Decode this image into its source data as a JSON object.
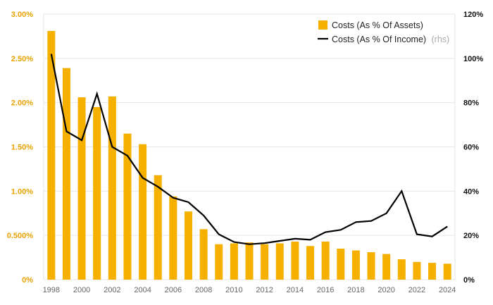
{
  "chart_data": {
    "type": "bar+line",
    "x": [
      1998,
      1999,
      2000,
      2001,
      2002,
      2003,
      2004,
      2005,
      2006,
      2007,
      2008,
      2009,
      2010,
      2011,
      2012,
      2013,
      2014,
      2015,
      2016,
      2017,
      2018,
      2019,
      2020,
      2021,
      2022,
      2023,
      2024
    ],
    "x_tick_labels": [
      "1998",
      "2000",
      "2002",
      "2004",
      "2006",
      "2008",
      "2010",
      "2012",
      "2014",
      "2016",
      "2018",
      "2020",
      "2022",
      "2024"
    ],
    "series": [
      {
        "name": "Costs (As % Of Assets)",
        "axis": "left",
        "kind": "bar",
        "color": "#f5b000",
        "values": [
          2.81,
          2.39,
          2.06,
          1.95,
          2.07,
          1.65,
          1.53,
          1.18,
          0.94,
          0.77,
          0.57,
          0.4,
          0.41,
          0.42,
          0.4,
          0.41,
          0.43,
          0.38,
          0.43,
          0.35,
          0.33,
          0.31,
          0.29,
          0.23,
          0.2,
          0.19,
          0.18
        ]
      },
      {
        "name": "Costs (As % Of Income)",
        "name_suffix": "(rhs)",
        "axis": "right",
        "kind": "line",
        "color": "#000000",
        "values": [
          102,
          67,
          63,
          84,
          60,
          56,
          46,
          42,
          37,
          35,
          29,
          20.5,
          17,
          16,
          16.5,
          17.5,
          18.5,
          18,
          21.5,
          22.5,
          26,
          26.5,
          30,
          40,
          20.5,
          19.5,
          24
        ]
      }
    ],
    "y_left": {
      "ylim": [
        0,
        3.0
      ],
      "ticks": [
        "0%",
        "0.500%",
        "1.00%",
        "1.50%",
        "2.00%",
        "2.50%",
        "3.00%"
      ],
      "tick_values": [
        0,
        0.5,
        1.0,
        1.5,
        2.0,
        2.5,
        3.0
      ]
    },
    "y_right": {
      "ylim": [
        0,
        120
      ],
      "ticks": [
        "0%",
        "20%",
        "40%",
        "60%",
        "80%",
        "100%",
        "120%"
      ],
      "tick_values": [
        0,
        20,
        40,
        60,
        80,
        100,
        120
      ]
    },
    "legend_position": "top-right",
    "grid": true
  },
  "colors": {
    "bar": "#f5b000",
    "line": "#000000",
    "grid": "#e6e6e6",
    "left_axis_text": "#e8a200"
  }
}
